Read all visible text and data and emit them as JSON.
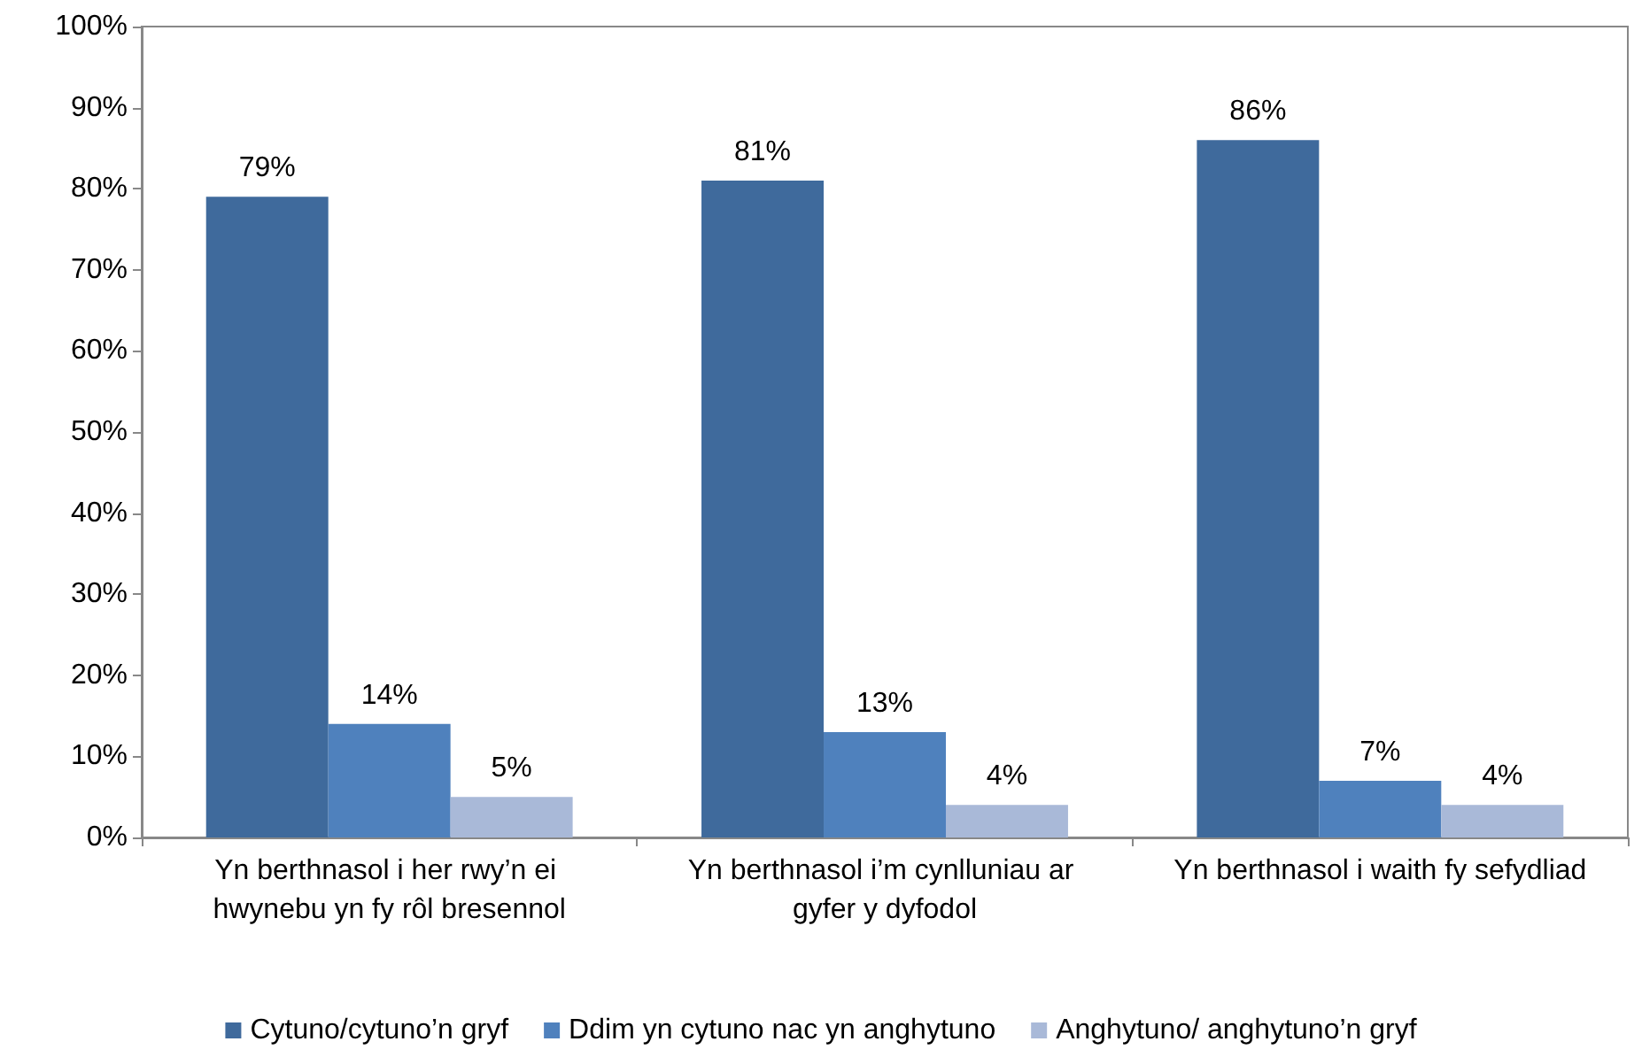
{
  "chart_data": {
    "type": "bar",
    "categories": [
      "Yn berthnasol i her rwy’n ei hwynebu yn fy rôl bresennol",
      "Yn berthnasol i’m cynlluniau ar gyfer y dyfodol",
      "Yn berthnasol i waith fy sefydliad"
    ],
    "series": [
      {
        "name": "Cytuno/cytuno’n gryf",
        "color": "#3f6a9c",
        "values": [
          79,
          81,
          86
        ],
        "value_labels": [
          "79%",
          "81%",
          "86%"
        ]
      },
      {
        "name": "Ddim yn cytuno nac yn anghytuno",
        "color": "#4f81bd",
        "values": [
          14,
          13,
          7
        ],
        "value_labels": [
          "14%",
          "13%",
          "7%"
        ]
      },
      {
        "name": "Anghytuno/ anghytuno’n gryf",
        "color": "#a9b9d8",
        "values": [
          5,
          4,
          4
        ],
        "value_labels": [
          "5%",
          "4%",
          "4%"
        ]
      }
    ],
    "ylim": [
      0,
      100
    ],
    "yticks": [
      {
        "value": 0,
        "label": "0%"
      },
      {
        "value": 10,
        "label": "10%"
      },
      {
        "value": 20,
        "label": "20%"
      },
      {
        "value": 30,
        "label": "30%"
      },
      {
        "value": 40,
        "label": "40%"
      },
      {
        "value": 50,
        "label": "50%"
      },
      {
        "value": 60,
        "label": "60%"
      },
      {
        "value": 70,
        "label": "70%"
      },
      {
        "value": 80,
        "label": "80%"
      },
      {
        "value": 90,
        "label": "90%"
      },
      {
        "value": 100,
        "label": "100%"
      }
    ],
    "grid": false,
    "legend": "bottom"
  }
}
